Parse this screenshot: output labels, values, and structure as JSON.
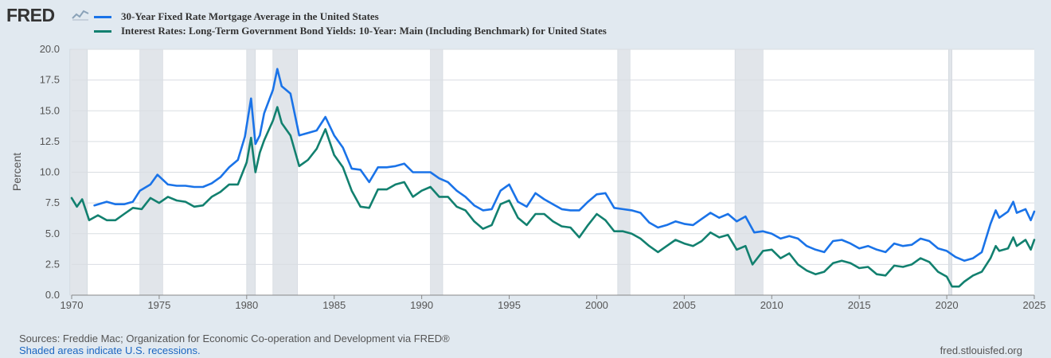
{
  "brand": {
    "logo_text": "FRED"
  },
  "footer": {
    "sources": "Sources: Freddie Mac; Organization for Economic Co-operation and Development via FRED®",
    "recessions_note": "Shaded areas indicate U.S. recessions.",
    "site": "fred.stlouisfed.org"
  },
  "colors": {
    "mortgage": "#1a73e8",
    "treasury": "#12806f",
    "recession": "#e1e5ea",
    "grid": "#d9dde2",
    "axis_text": "#555555"
  },
  "chart_data": {
    "type": "line",
    "title": "",
    "xlabel": "",
    "ylabel": "Percent",
    "xlim": [
      1970,
      2025
    ],
    "ylim": [
      0,
      20
    ],
    "x_ticks": [
      "1970",
      "1975",
      "1980",
      "1985",
      "1990",
      "1995",
      "2000",
      "2005",
      "2010",
      "2015",
      "2020",
      "2025"
    ],
    "y_ticks": [
      "0.0",
      "2.5",
      "5.0",
      "7.5",
      "10.0",
      "12.5",
      "15.0",
      "17.5",
      "20.0"
    ],
    "grid": true,
    "legend_position": "top-left",
    "recessions": [
      [
        1969.9,
        1970.9
      ],
      [
        1973.9,
        1975.2
      ],
      [
        1980.0,
        1980.5
      ],
      [
        1981.5,
        1982.9
      ],
      [
        1990.5,
        1991.2
      ],
      [
        2001.2,
        2001.9
      ],
      [
        2007.9,
        2009.5
      ],
      [
        2020.1,
        2020.3
      ]
    ],
    "series": [
      {
        "name": "30-Year Fixed Rate Mortgage Average in the United States",
        "x": [
          1971.3,
          1972.0,
          1972.5,
          1973.0,
          1973.5,
          1973.9,
          1974.5,
          1974.9,
          1975.5,
          1976.0,
          1976.5,
          1977.0,
          1977.5,
          1978.0,
          1978.5,
          1979.0,
          1979.5,
          1979.9,
          1980.25,
          1980.5,
          1980.75,
          1981.0,
          1981.5,
          1981.75,
          1982.0,
          1982.5,
          1983.0,
          1983.5,
          1984.0,
          1984.5,
          1985.0,
          1985.5,
          1986.0,
          1986.5,
          1987.0,
          1987.5,
          1988.0,
          1988.5,
          1989.0,
          1989.5,
          1990.0,
          1990.5,
          1991.0,
          1991.5,
          1992.0,
          1992.5,
          1993.0,
          1993.5,
          1994.0,
          1994.5,
          1995.0,
          1995.5,
          1996.0,
          1996.5,
          1997.0,
          1997.5,
          1998.0,
          1998.5,
          1999.0,
          1999.5,
          2000.0,
          2000.5,
          2001.0,
          2001.5,
          2002.0,
          2002.5,
          2003.0,
          2003.5,
          2004.0,
          2004.5,
          2005.0,
          2005.5,
          2006.0,
          2006.5,
          2007.0,
          2007.5,
          2008.0,
          2008.5,
          2009.0,
          2009.5,
          2010.0,
          2010.5,
          2011.0,
          2011.5,
          2012.0,
          2012.5,
          2013.0,
          2013.5,
          2014.0,
          2014.5,
          2015.0,
          2015.5,
          2016.0,
          2016.5,
          2017.0,
          2017.5,
          2018.0,
          2018.5,
          2019.0,
          2019.5,
          2020.0,
          2020.5,
          2021.0,
          2021.5,
          2022.0,
          2022.5,
          2022.8,
          2023.0,
          2023.5,
          2023.8,
          2024.0,
          2024.5,
          2024.8,
          2025.0
        ],
        "y": [
          7.3,
          7.6,
          7.4,
          7.4,
          7.6,
          8.5,
          9.0,
          9.8,
          9.0,
          8.9,
          8.9,
          8.8,
          8.8,
          9.1,
          9.6,
          10.4,
          11.0,
          12.9,
          16.0,
          12.3,
          13.0,
          14.8,
          16.7,
          18.4,
          17.0,
          16.4,
          13.0,
          13.2,
          13.4,
          14.5,
          13.0,
          12.0,
          10.3,
          10.2,
          9.2,
          10.4,
          10.4,
          10.5,
          10.7,
          10.0,
          10.0,
          10.0,
          9.5,
          9.2,
          8.5,
          8.0,
          7.3,
          6.9,
          7.0,
          8.5,
          9.0,
          7.6,
          7.2,
          8.3,
          7.8,
          7.4,
          7.0,
          6.9,
          6.9,
          7.6,
          8.2,
          8.3,
          7.1,
          7.0,
          6.9,
          6.7,
          5.9,
          5.5,
          5.7,
          6.0,
          5.8,
          5.7,
          6.2,
          6.7,
          6.3,
          6.6,
          6.0,
          6.4,
          5.1,
          5.2,
          5.0,
          4.6,
          4.8,
          4.6,
          4.0,
          3.7,
          3.5,
          4.4,
          4.5,
          4.2,
          3.8,
          4.0,
          3.7,
          3.5,
          4.2,
          4.0,
          4.1,
          4.6,
          4.4,
          3.8,
          3.6,
          3.1,
          2.8,
          3.0,
          3.5,
          5.8,
          6.9,
          6.3,
          6.8,
          7.6,
          6.7,
          7.0,
          6.1,
          6.8
        ]
      },
      {
        "name": "Interest Rates: Long-Term Government Bond Yields: 10-Year: Main (Including Benchmark) for United States",
        "x": [
          1970.0,
          1970.3,
          1970.6,
          1971.0,
          1971.5,
          1972.0,
          1972.5,
          1973.0,
          1973.5,
          1974.0,
          1974.5,
          1975.0,
          1975.5,
          1976.0,
          1976.5,
          1977.0,
          1977.5,
          1978.0,
          1978.5,
          1979.0,
          1979.5,
          1980.0,
          1980.25,
          1980.5,
          1980.75,
          1981.0,
          1981.5,
          1981.75,
          1982.0,
          1982.5,
          1983.0,
          1983.5,
          1984.0,
          1984.5,
          1985.0,
          1985.5,
          1986.0,
          1986.5,
          1987.0,
          1987.5,
          1988.0,
          1988.5,
          1989.0,
          1989.5,
          1990.0,
          1990.5,
          1991.0,
          1991.5,
          1992.0,
          1992.5,
          1993.0,
          1993.5,
          1994.0,
          1994.5,
          1995.0,
          1995.5,
          1996.0,
          1996.5,
          1997.0,
          1997.5,
          1998.0,
          1998.5,
          1999.0,
          1999.5,
          2000.0,
          2000.5,
          2001.0,
          2001.5,
          2002.0,
          2002.5,
          2003.0,
          2003.5,
          2004.0,
          2004.5,
          2005.0,
          2005.5,
          2006.0,
          2006.5,
          2007.0,
          2007.5,
          2008.0,
          2008.5,
          2008.9,
          2009.5,
          2010.0,
          2010.5,
          2011.0,
          2011.5,
          2012.0,
          2012.5,
          2013.0,
          2013.5,
          2014.0,
          2014.5,
          2015.0,
          2015.5,
          2016.0,
          2016.5,
          2017.0,
          2017.5,
          2018.0,
          2018.5,
          2019.0,
          2019.5,
          2020.0,
          2020.3,
          2020.7,
          2021.0,
          2021.5,
          2022.0,
          2022.5,
          2022.8,
          2023.0,
          2023.5,
          2023.8,
          2024.0,
          2024.5,
          2024.8,
          2025.0
        ],
        "y": [
          7.9,
          7.2,
          7.8,
          6.1,
          6.5,
          6.1,
          6.1,
          6.6,
          7.1,
          7.0,
          7.9,
          7.5,
          8.0,
          7.7,
          7.6,
          7.2,
          7.3,
          8.0,
          8.4,
          9.0,
          9.0,
          10.8,
          12.8,
          10.0,
          11.6,
          12.6,
          14.2,
          15.3,
          14.0,
          13.0,
          10.5,
          11.0,
          11.9,
          13.5,
          11.4,
          10.4,
          8.5,
          7.2,
          7.1,
          8.6,
          8.6,
          9.0,
          9.2,
          8.0,
          8.5,
          8.8,
          8.0,
          8.0,
          7.2,
          6.9,
          6.0,
          5.4,
          5.7,
          7.4,
          7.7,
          6.3,
          5.7,
          6.6,
          6.6,
          6.0,
          5.6,
          5.5,
          4.7,
          5.7,
          6.6,
          6.1,
          5.2,
          5.2,
          5.0,
          4.6,
          4.0,
          3.5,
          4.0,
          4.5,
          4.2,
          4.0,
          4.4,
          5.1,
          4.7,
          4.9,
          3.7,
          4.0,
          2.5,
          3.6,
          3.7,
          3.0,
          3.4,
          2.5,
          2.0,
          1.7,
          1.9,
          2.6,
          2.8,
          2.6,
          2.2,
          2.3,
          1.7,
          1.6,
          2.4,
          2.3,
          2.5,
          3.0,
          2.7,
          1.9,
          1.5,
          0.7,
          0.7,
          1.1,
          1.6,
          1.9,
          3.0,
          4.0,
          3.6,
          3.8,
          4.7,
          4.0,
          4.5,
          3.7,
          4.5
        ]
      }
    ]
  }
}
